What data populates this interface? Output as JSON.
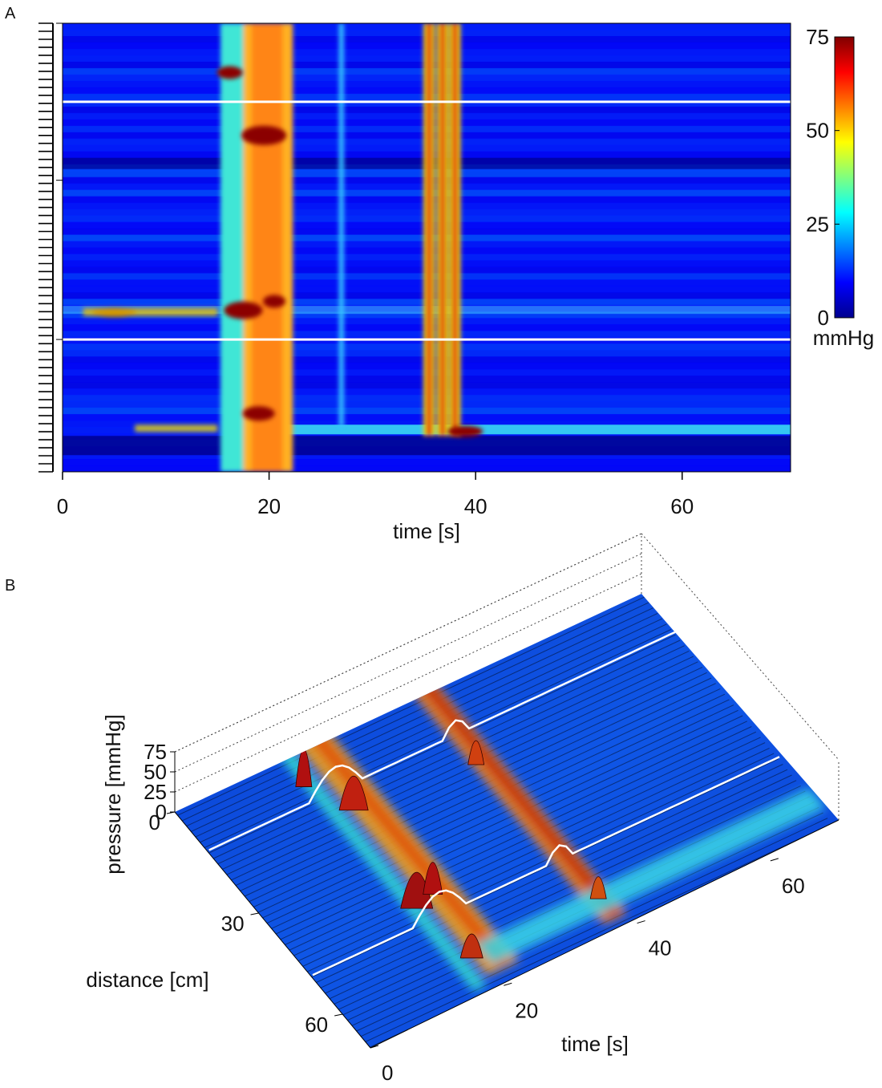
{
  "chart_data": [
    {
      "panel": "A",
      "type": "heatmap",
      "xlabel": "time [s]",
      "xlim": [
        0,
        70.5
      ],
      "x_ticks": [
        0,
        20,
        40,
        60
      ],
      "colorbar": {
        "min": 0,
        "max": 75,
        "ticks": [
          0,
          25,
          50,
          75
        ],
        "unit": "mmHg",
        "colormap": "jet"
      },
      "boundary_lines_fraction": [
        0.175,
        0.705
      ],
      "events": [
        {
          "name": "wide band",
          "t_start": 15.3,
          "t_end": 22.3
        },
        {
          "name": "thin line",
          "t": 27.0
        },
        {
          "name": "triple band",
          "t": [
            35.5,
            36.8,
            38.0
          ]
        }
      ],
      "hotspots": [
        {
          "t": 16.2,
          "pos": 0.11
        },
        {
          "t": 19.5,
          "pos": 0.25
        },
        {
          "t": 17.5,
          "pos": 0.64
        },
        {
          "t": 20.5,
          "pos": 0.62
        },
        {
          "t": 19.0,
          "pos": 0.87
        },
        {
          "t": 39.0,
          "pos": 0.91
        }
      ]
    },
    {
      "panel": "B",
      "type": "surface",
      "xlabel": "time [s]",
      "ylabel": "distance [cm]",
      "zlabel": "pressure [mmHg]",
      "x_ticks": [
        0,
        20,
        40,
        60
      ],
      "y_ticks": [
        0,
        30,
        60
      ],
      "z_ticks": [
        0,
        25,
        50,
        75
      ]
    }
  ]
}
